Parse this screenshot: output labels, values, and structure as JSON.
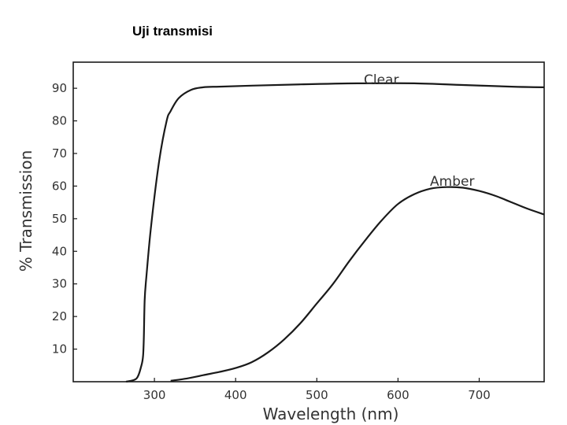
{
  "page": {
    "heading": "Uji transmisi"
  },
  "chart_data": {
    "type": "line",
    "xlabel": "Wavelength (nm)",
    "ylabel": "% Transmission",
    "xlim": [
      200,
      780
    ],
    "ylim": [
      0,
      98
    ],
    "x_ticks": [
      300,
      400,
      500,
      600,
      700
    ],
    "y_ticks": [
      10,
      20,
      30,
      40,
      50,
      60,
      70,
      80,
      90
    ],
    "grid": false,
    "series": [
      {
        "name": "Clear",
        "color": "#1a1a1a",
        "x": [
          265,
          278,
          284,
          286,
          287,
          288,
          290,
          296,
          306,
          315,
          320,
          330,
          345,
          360,
          380,
          420,
          480,
          550,
          620,
          680,
          740,
          780
        ],
        "y": [
          0,
          1,
          5,
          8,
          14,
          25,
          32,
          48,
          68,
          80,
          83,
          87,
          89.5,
          90.3,
          90.5,
          90.8,
          91.2,
          91.5,
          91.5,
          91,
          90.5,
          90.3
        ]
      },
      {
        "name": "Amber",
        "color": "#1a1a1a",
        "x": [
          320,
          340,
          360,
          380,
          400,
          420,
          440,
          460,
          480,
          500,
          520,
          540,
          560,
          580,
          600,
          620,
          640,
          660,
          680,
          700,
          720,
          740,
          760,
          780
        ],
        "y": [
          0.3,
          1,
          2,
          3,
          4.2,
          6,
          9,
          13,
          18,
          24,
          30,
          37,
          43.5,
          49.5,
          54.5,
          57.5,
          59.2,
          59.7,
          59.5,
          58.5,
          57,
          55,
          53,
          51.3
        ]
      }
    ]
  }
}
